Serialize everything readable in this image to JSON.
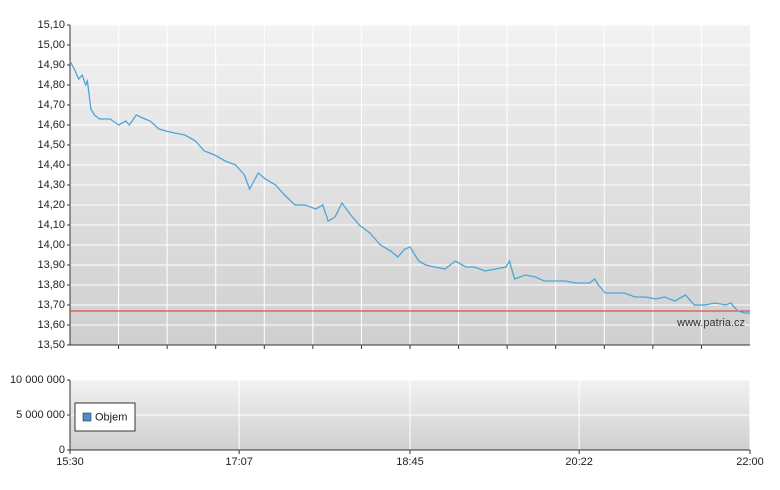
{
  "chart_data": [
    {
      "type": "line",
      "annotation": "www.patria.cz",
      "xlim": [
        "15:30",
        "22:00"
      ],
      "ylim": [
        13.5,
        15.1
      ],
      "yticks": [
        {
          "value": 13.5,
          "label": "13,50"
        },
        {
          "value": 13.6,
          "label": "13,60"
        },
        {
          "value": 13.7,
          "label": "13,70"
        },
        {
          "value": 13.8,
          "label": "13,80"
        },
        {
          "value": 13.9,
          "label": "13,90"
        },
        {
          "value": 14.0,
          "label": "14,00"
        },
        {
          "value": 14.1,
          "label": "14,10"
        },
        {
          "value": 14.2,
          "label": "14,20"
        },
        {
          "value": 14.3,
          "label": "14,30"
        },
        {
          "value": 14.4,
          "label": "14,40"
        },
        {
          "value": 14.5,
          "label": "14,50"
        },
        {
          "value": 14.6,
          "label": "14,60"
        },
        {
          "value": 14.7,
          "label": "14,70"
        },
        {
          "value": 14.8,
          "label": "14,80"
        },
        {
          "value": 14.9,
          "label": "14,90"
        },
        {
          "value": 15.0,
          "label": "15,00"
        },
        {
          "value": 15.1,
          "label": "15,10"
        }
      ],
      "reference_line": {
        "value": 13.67,
        "color": "#e03030"
      },
      "grid": true,
      "series": [
        {
          "color": "#4da6d6",
          "x": [
            "15:30",
            "15:33",
            "15:35",
            "15:37",
            "15:39",
            "15:40",
            "15:42",
            "15:44",
            "15:47",
            "15:53",
            "15:58",
            "16:02",
            "16:04",
            "16:08",
            "16:13",
            "16:16",
            "16:21",
            "16:25",
            "16:30",
            "16:36",
            "16:42",
            "16:47",
            "16:53",
            "16:59",
            "17:05",
            "17:10",
            "17:13",
            "17:18",
            "17:22",
            "17:28",
            "17:33",
            "17:39",
            "17:45",
            "17:51",
            "17:55",
            "17:58",
            "18:02",
            "18:06",
            "18:11",
            "18:16",
            "18:22",
            "18:28",
            "18:34",
            "18:38",
            "18:42",
            "18:45",
            "18:50",
            "18:54",
            "18:59",
            "19:05",
            "19:11",
            "19:17",
            "19:22",
            "19:28",
            "19:34",
            "19:40",
            "19:42",
            "19:45",
            "19:51",
            "19:57",
            "20:02",
            "20:08",
            "20:14",
            "20:20",
            "20:28",
            "20:31",
            "20:33",
            "20:37",
            "20:43",
            "20:48",
            "20:54",
            "21:00",
            "21:06",
            "21:11",
            "21:17",
            "21:23",
            "21:28",
            "21:34",
            "21:40",
            "21:46",
            "21:49",
            "21:53",
            "21:57",
            "22:00"
          ],
          "values": [
            14.92,
            14.87,
            14.83,
            14.85,
            14.8,
            14.82,
            14.68,
            14.65,
            14.63,
            14.63,
            14.6,
            14.62,
            14.6,
            14.65,
            14.63,
            14.62,
            14.58,
            14.57,
            14.56,
            14.55,
            14.52,
            14.47,
            14.45,
            14.42,
            14.4,
            14.35,
            14.28,
            14.36,
            14.33,
            14.3,
            14.25,
            14.2,
            14.2,
            14.18,
            14.2,
            14.12,
            14.14,
            14.21,
            14.15,
            14.1,
            14.06,
            14.0,
            13.97,
            13.94,
            13.98,
            13.99,
            13.92,
            13.9,
            13.89,
            13.88,
            13.92,
            13.89,
            13.89,
            13.87,
            13.88,
            13.89,
            13.92,
            13.83,
            13.85,
            13.84,
            13.82,
            13.82,
            13.82,
            13.81,
            13.81,
            13.83,
            13.8,
            13.76,
            13.76,
            13.76,
            13.74,
            13.74,
            13.73,
            13.74,
            13.72,
            13.75,
            13.7,
            13.7,
            13.71,
            13.7,
            13.71,
            13.67,
            13.66,
            13.66
          ]
        }
      ]
    },
    {
      "type": "bar",
      "xlim": [
        "15:30",
        "22:00"
      ],
      "xticks": [
        "15:30",
        "17:07",
        "18:45",
        "20:22",
        "22:00"
      ],
      "ylim": [
        0,
        10000000
      ],
      "yticks": [
        0,
        {
          "value": 5000000,
          "label": "5 000 000"
        },
        {
          "value": 10000000,
          "label": "10 000 000"
        }
      ],
      "grid": true,
      "legend": "bottom-left",
      "series": [
        {
          "name": "Objem",
          "color": "#4a8fd0"
        }
      ]
    }
  ]
}
